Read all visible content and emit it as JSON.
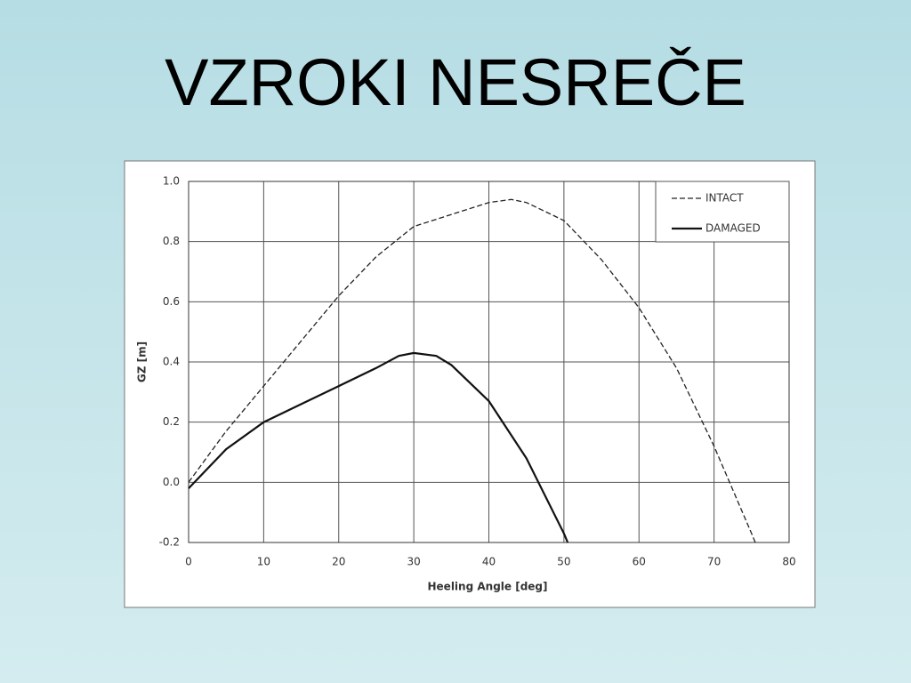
{
  "title": "VZROKI NESREČE",
  "chart_data": {
    "type": "line",
    "xlabel": "Heeling Angle [deg]",
    "ylabel": "GZ [m]",
    "xlim": [
      0,
      80
    ],
    "xticks": [
      0,
      10,
      20,
      30,
      40,
      50,
      60,
      70,
      80
    ],
    "ylim": [
      -0.2,
      1.0
    ],
    "yticks": [
      {
        "value": 1,
        "label": "1.0"
      },
      0.8,
      0.6,
      0.4,
      0.2,
      {
        "value": 0,
        "label": "0.0"
      },
      -0.2
    ],
    "grid": true,
    "legend": "upper right",
    "series": [
      {
        "name": "INTACT",
        "color": "#222222",
        "dash": true,
        "x": [
          0,
          5,
          10,
          15,
          20,
          25,
          30,
          35,
          40,
          43,
          45,
          50,
          55,
          60,
          65,
          70,
          75,
          75.5
        ],
        "values": [
          0.0,
          0.17,
          0.32,
          0.47,
          0.62,
          0.75,
          0.85,
          0.89,
          0.93,
          0.94,
          0.93,
          0.87,
          0.74,
          0.58,
          0.38,
          0.12,
          -0.17,
          -0.2
        ]
      },
      {
        "name": "DAMAGED",
        "color": "#111111",
        "dash": false,
        "x": [
          0,
          5,
          10,
          15,
          20,
          25,
          28,
          30,
          33,
          35,
          40,
          45,
          50,
          50.5
        ],
        "values": [
          -0.02,
          0.11,
          0.2,
          0.26,
          0.32,
          0.38,
          0.42,
          0.43,
          0.42,
          0.39,
          0.27,
          0.08,
          -0.17,
          -0.2
        ]
      }
    ]
  }
}
